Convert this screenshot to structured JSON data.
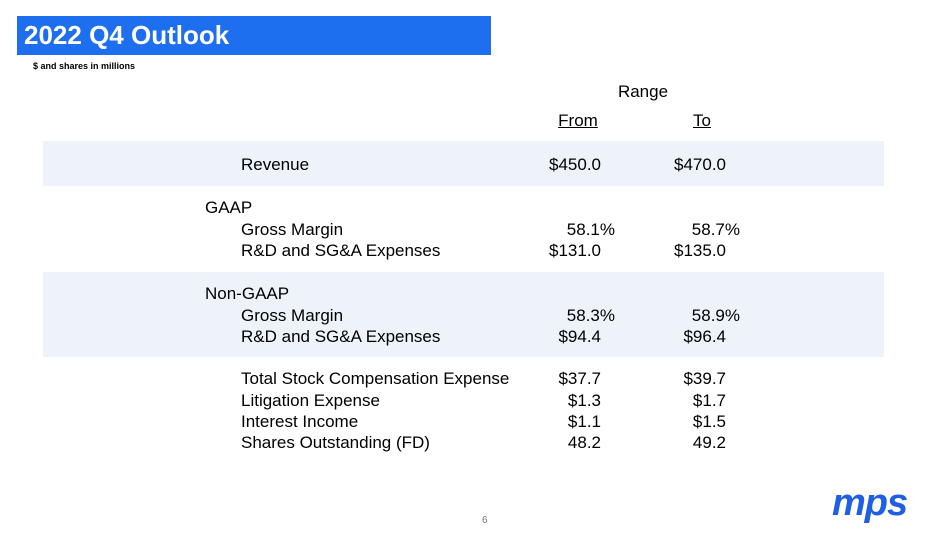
{
  "header": {
    "title": "2022 Q4 Outlook",
    "subtitle": "$ and shares in millions"
  },
  "table": {
    "range_label": "Range",
    "columns": [
      "From",
      "To"
    ],
    "rows": [
      {
        "label": "Revenue",
        "from": "$450.0",
        "to": "$470.0"
      },
      {
        "label": "GAAP"
      },
      {
        "label": "Gross Margin",
        "from": "58.1%",
        "to": "58.7%"
      },
      {
        "label": "R&D and SG&A Expenses",
        "from": "$131.0",
        "to": "$135.0"
      },
      {
        "label": "Non-GAAP"
      },
      {
        "label": "Gross Margin",
        "from": "58.3%",
        "to": "58.9%"
      },
      {
        "label": "R&D and SG&A Expenses",
        "from": "$94.4",
        "to": "$96.4"
      },
      {
        "label": "Total Stock Compensation Expense",
        "from": "$37.7",
        "to": "$39.7"
      },
      {
        "label": "Litigation Expense",
        "from": "$1.3",
        "to": "$1.7"
      },
      {
        "label": "Interest Income",
        "from": "$1.1",
        "to": "$1.5"
      },
      {
        "label": "Shares Outstanding (FD)",
        "from": "48.2",
        "to": "49.2"
      }
    ]
  },
  "footer": {
    "page_number": "6",
    "logo": "mps"
  }
}
